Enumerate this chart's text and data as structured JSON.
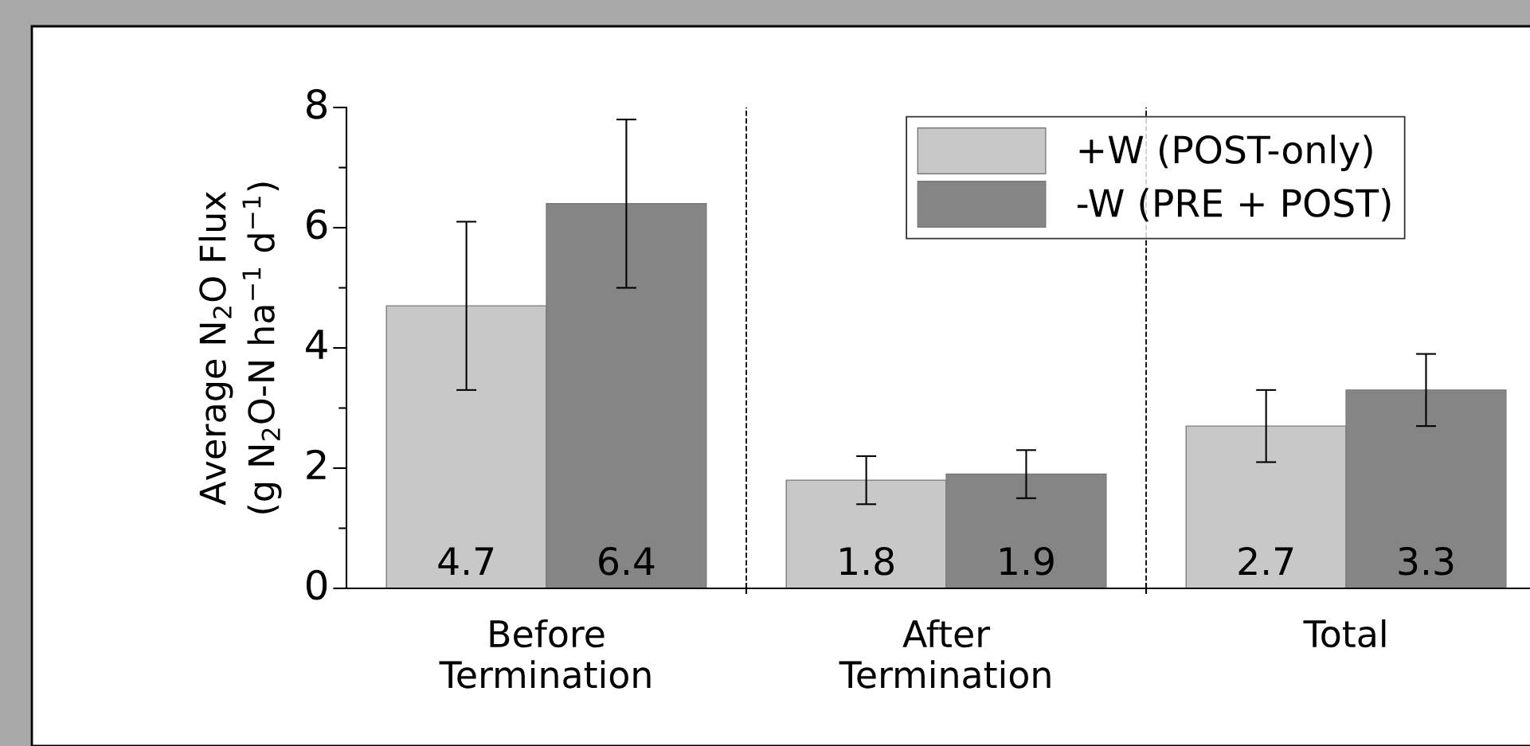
{
  "chart_data": {
    "type": "bar",
    "ylabel": "Average N$_{2}$O Flux\n(g N$_{2}$O-N ha$^{−1}$ d$^{−1}$)",
    "categories": [
      "Before\nTermination",
      "After\nTermination",
      "Total"
    ],
    "series": [
      {
        "name": "+W (POST-only)",
        "color": "#c8c8c8",
        "values": [
          4.7,
          1.8,
          2.7
        ],
        "errors": [
          1.4,
          0.4,
          0.6
        ]
      },
      {
        "name": "-W (PRE + POST)",
        "color": "#858585",
        "values": [
          6.4,
          1.9,
          3.3
        ],
        "errors": [
          1.4,
          0.4,
          0.6
        ]
      }
    ],
    "ylim": [
      0,
      8
    ],
    "yticks": [
      0,
      2,
      4,
      6,
      8
    ],
    "data_labels": true,
    "legend": "top right",
    "grid": false
  }
}
